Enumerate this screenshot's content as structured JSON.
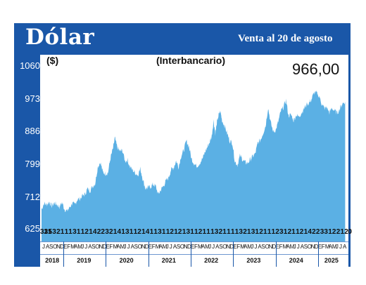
{
  "header": {
    "title": "Dólar",
    "subtitle": "Venta al 20 de agosto"
  },
  "chart_data": {
    "type": "area",
    "unit_label": "($)",
    "note": "(Interbancario)",
    "last_value_label": "966,00",
    "ylim": [
      625,
      1060
    ],
    "yticks": [
      "1060",
      "973",
      "886",
      "799",
      "712",
      "625"
    ],
    "ytick_values": [
      1060,
      973,
      886,
      799,
      712,
      625
    ],
    "fill_color": "#5bb0e4",
    "frame_color": "#1a57a8",
    "day_labels": [
      "31",
      "31",
      "5",
      "3",
      "2",
      "1",
      "1",
      "1",
      "3",
      "1",
      "1",
      "2",
      "1",
      "4",
      "2",
      "2",
      "3",
      "2",
      "1",
      "4",
      "1",
      "3",
      "1",
      "1",
      "2",
      "1",
      "4",
      "1",
      "1",
      "3",
      "1",
      "1",
      "2",
      "1",
      "2",
      "1",
      "3",
      "1",
      "1",
      "2",
      "1",
      "1",
      "1",
      "3",
      "2",
      "1",
      "1",
      "1",
      "1",
      "3",
      "2",
      "1",
      "3",
      "1",
      "2",
      "1",
      "1",
      "1",
      "2",
      "3",
      "1",
      "2",
      "1",
      "1",
      "2",
      "1",
      "4",
      "2",
      "2",
      "3",
      "3",
      "1",
      "2",
      "2",
      "1",
      "20"
    ],
    "months": [
      "J",
      "A",
      "S",
      "O",
      "N",
      "D",
      "E",
      "F",
      "M",
      "A",
      "M",
      "J",
      "J",
      "A",
      "S",
      "O",
      "N",
      "D",
      "E",
      "F",
      "M",
      "A",
      "M",
      "J",
      "J",
      "A",
      "S",
      "O",
      "N",
      "D",
      "E",
      "F",
      "M",
      "A",
      "M",
      "J",
      "J",
      "A",
      "S",
      "O",
      "N",
      "D",
      "E",
      "F",
      "M",
      "A",
      "M",
      "J",
      "J",
      "A",
      "S",
      "O",
      "N",
      "D",
      "E",
      "F",
      "M",
      "A",
      "M",
      "J",
      "J",
      "A",
      "S",
      "O",
      "N",
      "D",
      "E",
      "F",
      "M",
      "A",
      "M",
      "J",
      "J",
      "A",
      "S",
      "O",
      "N",
      "D",
      "E",
      "F",
      "M",
      "A",
      "M",
      "J",
      "J",
      "A"
    ],
    "years": [
      "2018",
      "2019",
      "2020",
      "2021",
      "2022",
      "2023",
      "2024",
      "2025"
    ],
    "x_start": "2018-07",
    "x_end": "2025-08-20",
    "series": [
      {
        "values": [
          [
            2018.5,
            676
          ],
          [
            2018.56,
            692
          ],
          [
            2018.62,
            688
          ],
          [
            2018.68,
            696
          ],
          [
            2018.74,
            684
          ],
          [
            2018.8,
            693
          ],
          [
            2018.86,
            689
          ],
          [
            2018.92,
            682
          ],
          [
            2018.98,
            694
          ],
          [
            2019.04,
            676
          ],
          [
            2019.1,
            671
          ],
          [
            2019.16,
            681
          ],
          [
            2019.22,
            692
          ],
          [
            2019.28,
            688
          ],
          [
            2019.34,
            702
          ],
          [
            2019.4,
            704
          ],
          [
            2019.46,
            712
          ],
          [
            2019.52,
            716
          ],
          [
            2019.58,
            731
          ],
          [
            2019.64,
            726
          ],
          [
            2019.7,
            738
          ],
          [
            2019.76,
            745
          ],
          [
            2019.82,
            790
          ],
          [
            2019.88,
            803
          ],
          [
            2019.94,
            776
          ],
          [
            2020.0,
            772
          ],
          [
            2020.06,
            774
          ],
          [
            2020.12,
            814
          ],
          [
            2020.18,
            840
          ],
          [
            2020.22,
            868
          ],
          [
            2020.28,
            842
          ],
          [
            2020.34,
            832
          ],
          [
            2020.4,
            834
          ],
          [
            2020.46,
            806
          ],
          [
            2020.52,
            808
          ],
          [
            2020.58,
            790
          ],
          [
            2020.64,
            781
          ],
          [
            2020.7,
            774
          ],
          [
            2020.76,
            768
          ],
          [
            2020.82,
            785
          ],
          [
            2020.88,
            756
          ],
          [
            2020.94,
            732
          ],
          [
            2021.0,
            734
          ],
          [
            2021.06,
            736
          ],
          [
            2021.12,
            743
          ],
          [
            2021.18,
            738
          ],
          [
            2021.24,
            716
          ],
          [
            2021.3,
            728
          ],
          [
            2021.36,
            738
          ],
          [
            2021.42,
            752
          ],
          [
            2021.48,
            760
          ],
          [
            2021.54,
            782
          ],
          [
            2021.6,
            788
          ],
          [
            2021.66,
            806
          ],
          [
            2021.72,
            790
          ],
          [
            2021.78,
            820
          ],
          [
            2021.84,
            835
          ],
          [
            2021.9,
            860
          ],
          [
            2021.96,
            846
          ],
          [
            2022.02,
            812
          ],
          [
            2022.08,
            800
          ],
          [
            2022.14,
            792
          ],
          [
            2022.2,
            798
          ],
          [
            2022.28,
            812
          ],
          [
            2022.34,
            830
          ],
          [
            2022.4,
            845
          ],
          [
            2022.46,
            860
          ],
          [
            2022.5,
            875
          ],
          [
            2022.54,
            915
          ],
          [
            2022.58,
            880
          ],
          [
            2022.62,
            910
          ],
          [
            2022.66,
            930
          ],
          [
            2022.7,
            940
          ],
          [
            2022.74,
            915
          ],
          [
            2022.8,
            900
          ],
          [
            2022.86,
            880
          ],
          [
            2022.92,
            860
          ],
          [
            2022.98,
            855
          ],
          [
            2023.04,
            805
          ],
          [
            2023.1,
            795
          ],
          [
            2023.16,
            820
          ],
          [
            2023.22,
            810
          ],
          [
            2023.28,
            802
          ],
          [
            2023.34,
            800
          ],
          [
            2023.4,
            810
          ],
          [
            2023.46,
            818
          ],
          [
            2023.52,
            826
          ],
          [
            2023.58,
            855
          ],
          [
            2023.64,
            862
          ],
          [
            2023.7,
            880
          ],
          [
            2023.76,
            900
          ],
          [
            2023.82,
            950
          ],
          [
            2023.88,
            910
          ],
          [
            2023.94,
            885
          ],
          [
            2024.0,
            889
          ],
          [
            2024.06,
            912
          ],
          [
            2024.12,
            940
          ],
          [
            2024.18,
            951
          ],
          [
            2024.24,
            970
          ],
          [
            2024.3,
            928
          ],
          [
            2024.36,
            930
          ],
          [
            2024.42,
            915
          ],
          [
            2024.48,
            930
          ],
          [
            2024.54,
            925
          ],
          [
            2024.6,
            935
          ],
          [
            2024.66,
            946
          ],
          [
            2024.72,
            958
          ],
          [
            2024.78,
            962
          ],
          [
            2024.84,
            972
          ],
          [
            2024.9,
            990
          ],
          [
            2024.96,
            989
          ],
          [
            2025.02,
            980
          ],
          [
            2025.08,
            960
          ],
          [
            2025.14,
            948
          ],
          [
            2025.2,
            950
          ],
          [
            2025.26,
            936
          ],
          [
            2025.32,
            948
          ],
          [
            2025.38,
            942
          ],
          [
            2025.44,
            935
          ],
          [
            2025.5,
            945
          ],
          [
            2025.56,
            960
          ],
          [
            2025.63,
            966
          ]
        ]
      }
    ]
  }
}
